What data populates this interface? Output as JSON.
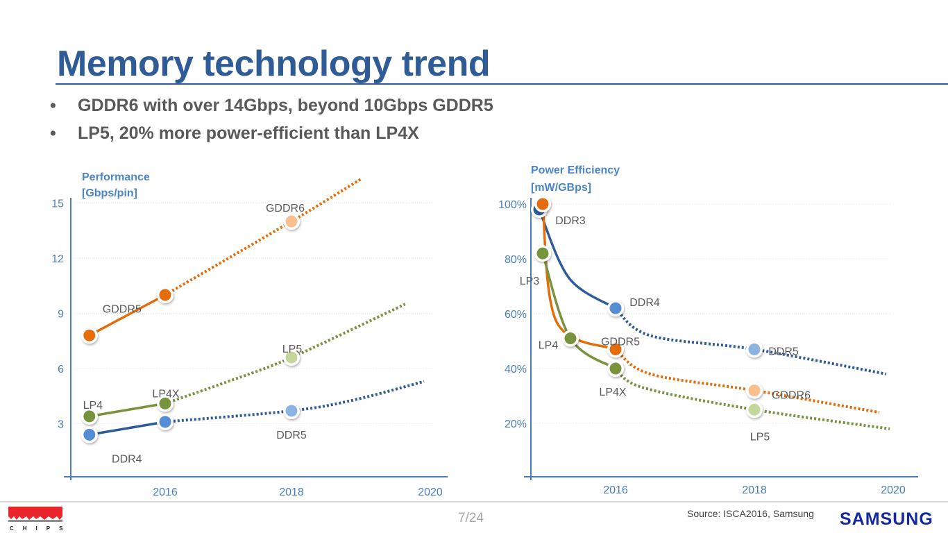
{
  "slide": {
    "title": "Memory technology trend",
    "bullets": [
      "GDDR6 with over 14Gbps, beyond 10Gbps GDDR5",
      "LP5, 20% more power-efficient than LP4X"
    ],
    "page": "7/24",
    "source": "Source:  ISCA2016, Samsung",
    "logos": {
      "left": "HOT CHIPS",
      "right": "SAMSUNG"
    },
    "colors": {
      "title": "#2F5C97",
      "text": "#595959",
      "axis": "#4A7EBB"
    }
  },
  "chart_data": [
    {
      "type": "line",
      "ylabel": [
        "Performance",
        "[Gbps/pin]"
      ],
      "xticks": [
        "2016",
        "2018",
        "2020"
      ],
      "xtick_values": [
        2016,
        2018,
        2020
      ],
      "yticks": [
        "3",
        "6",
        "9",
        "12",
        "15"
      ],
      "ytick_values": [
        3,
        6,
        9,
        12,
        15
      ],
      "xlim": [
        2014.5,
        2020.2
      ],
      "ylim": [
        0,
        15
      ],
      "grid": "horizontal dotted",
      "series": [
        {
          "color": "#E46C0A",
          "solid": [
            [
              2014.8,
              7.8
            ],
            [
              2016,
              10
            ]
          ],
          "projected": [
            [
              2016,
              10
            ],
            [
              2018,
              14
            ],
            [
              2019.1,
              16.3
            ]
          ],
          "points": [
            {
              "x": 2014.8,
              "y": 7.8,
              "label": "GDDR5",
              "color": "#E46C0A"
            },
            {
              "x": 2016,
              "y": 10,
              "label": "",
              "color": "#E46C0A"
            },
            {
              "x": 2018,
              "y": 14,
              "label": "GDDR6",
              "color": "#F9BF8F"
            }
          ]
        },
        {
          "color": "#77933C",
          "solid": [
            [
              2014.8,
              3.4
            ],
            [
              2016,
              4.1
            ]
          ],
          "projected": [
            [
              2016,
              4.1
            ],
            [
              2017,
              5.3
            ],
            [
              2018,
              6.6
            ],
            [
              2019.8,
              9.5
            ]
          ],
          "points": [
            {
              "x": 2014.8,
              "y": 3.4,
              "label": "LP4",
              "color": "#77933C"
            },
            {
              "x": 2016,
              "y": 4.1,
              "label": "LP4X",
              "color": "#77933C"
            },
            {
              "x": 2018,
              "y": 6.6,
              "label": "LP5",
              "color": "#C3D69B"
            }
          ]
        },
        {
          "color": "#2E5C9A",
          "solid": [
            [
              2014.8,
              2.4
            ],
            [
              2016,
              3.1
            ]
          ],
          "projected": [
            [
              2016,
              3.1
            ],
            [
              2018,
              3.7
            ],
            [
              2019,
              4.3
            ],
            [
              2020.1,
              5.3
            ]
          ],
          "points": [
            {
              "x": 2014.8,
              "y": 2.4,
              "label": "DDR4",
              "color": "#558ED5"
            },
            {
              "x": 2016,
              "y": 3.1,
              "label": "",
              "color": "#558ED5"
            },
            {
              "x": 2018,
              "y": 3.7,
              "label": "DDR5",
              "color": "#8DB3E2"
            }
          ]
        }
      ]
    },
    {
      "type": "line",
      "ylabel": [
        "Power Efficiency",
        "[mW/GBps]"
      ],
      "xticks": [
        "2016",
        "2018",
        "2020"
      ],
      "xtick_values": [
        2016,
        2018,
        2020
      ],
      "yticks": [
        "20%",
        "40%",
        "60%",
        "80%",
        "100%"
      ],
      "ytick_values": [
        20,
        40,
        60,
        80,
        100
      ],
      "xlim": [
        2014.8,
        2020.4
      ],
      "ylim": [
        0,
        100
      ],
      "grid": "horizontal dotted",
      "series": [
        {
          "color": "#2E5C9A",
          "solid": [
            [
              2014.9,
              98
            ],
            [
              2015.33,
              73
            ],
            [
              2016,
              62
            ]
          ],
          "projected": [
            [
              2016,
              62
            ],
            [
              2016.5,
              52
            ],
            [
              2018,
              47
            ],
            [
              2019.9,
              38
            ]
          ],
          "points": [
            {
              "x": 2014.9,
              "y": 98,
              "label": "DDR3",
              "color": "#2E5C9A"
            },
            {
              "x": 2016,
              "y": 62,
              "label": "DDR4",
              "color": "#558ED5"
            },
            {
              "x": 2018,
              "y": 47,
              "label": "DDR5",
              "color": "#8DB3E2"
            }
          ]
        },
        {
          "color": "#E46C0A",
          "solid": [
            [
              2014.95,
              100
            ],
            [
              2015.15,
              57
            ],
            [
              2016,
              47
            ]
          ],
          "projected": [
            [
              2016,
              47
            ],
            [
              2016.5,
              38
            ],
            [
              2018,
              32
            ],
            [
              2019.8,
              24
            ]
          ],
          "points": [
            {
              "x": 2014.95,
              "y": 100,
              "label": "",
              "color": "#E46C0A"
            },
            {
              "x": 2016,
              "y": 47,
              "label": "GDDR5",
              "color": "#E46C0A"
            },
            {
              "x": 2018,
              "y": 32,
              "label": "GDDR6",
              "color": "#F9BF8F"
            }
          ]
        },
        {
          "color": "#77933C",
          "solid": [
            [
              2014.95,
              82
            ],
            [
              2015.35,
              51
            ],
            [
              2016,
              40
            ]
          ],
          "projected": [
            [
              2016,
              40
            ],
            [
              2016.4,
              33
            ],
            [
              2018,
              25
            ],
            [
              2019.95,
              18
            ]
          ],
          "points": [
            {
              "x": 2014.95,
              "y": 82,
              "label": "LP3",
              "color": "#77933C"
            },
            {
              "x": 2015.35,
              "y": 51,
              "label": "LP4",
              "color": "#77933C"
            },
            {
              "x": 2016,
              "y": 40,
              "label": "LP4X",
              "color": "#77933C"
            },
            {
              "x": 2018,
              "y": 25,
              "label": "LP5",
              "color": "#C3D69B"
            }
          ]
        }
      ]
    }
  ]
}
